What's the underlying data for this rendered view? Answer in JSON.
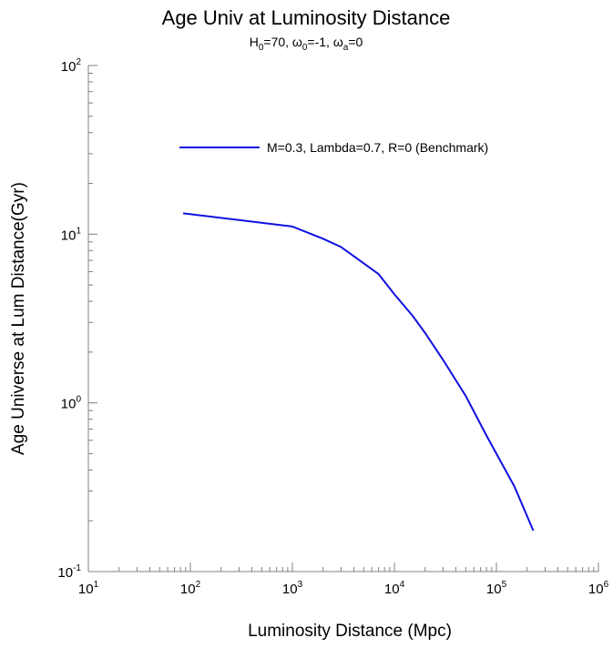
{
  "chart_data": {
    "type": "line",
    "title": "Age Univ at Luminosity Distance",
    "subtitle": {
      "parts": [
        {
          "text": "H",
          "sub": "0",
          "after": "=70, "
        },
        {
          "text": "ω",
          "sub": "0",
          "after": "=-1, "
        },
        {
          "text": "ω",
          "sub": "a",
          "after": "=0"
        }
      ]
    },
    "xlabel": "Luminosity Distance (Mpc)",
    "ylabel": "Age Universe at Lum Distance(Gyr)",
    "xscale": "log",
    "yscale": "log",
    "xlim": [
      10,
      1000000
    ],
    "ylim": [
      0.1,
      100
    ],
    "x_ticks": [
      {
        "base": "10",
        "exp": "1"
      },
      {
        "base": "10",
        "exp": "2"
      },
      {
        "base": "10",
        "exp": "3"
      },
      {
        "base": "10",
        "exp": "4"
      },
      {
        "base": "10",
        "exp": "5"
      },
      {
        "base": "10",
        "exp": "6"
      }
    ],
    "y_ticks": [
      {
        "base": "10",
        "exp": "-1"
      },
      {
        "base": "10",
        "exp": "0"
      },
      {
        "base": "10",
        "exp": "1"
      },
      {
        "base": "10",
        "exp": "2"
      }
    ],
    "grid": false,
    "legend_position": "top-center",
    "series": [
      {
        "name": "M=0.3, Lambda=0.7, R=0 (Benchmark)",
        "color": "#1010e0",
        "x": [
          85,
          1000,
          2000,
          3000,
          7000,
          10000,
          15000,
          20000,
          30000,
          50000,
          80000,
          150000,
          230000
        ],
        "y": [
          13.3,
          11.1,
          9.4,
          8.4,
          5.8,
          4.4,
          3.3,
          2.6,
          1.8,
          1.1,
          0.64,
          0.32,
          0.175
        ]
      }
    ]
  }
}
